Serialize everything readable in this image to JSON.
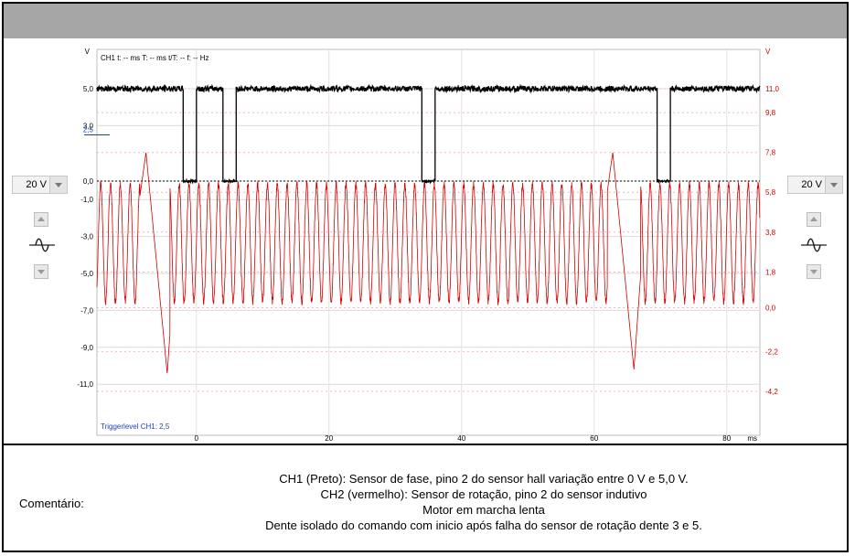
{
  "comment": {
    "label": "Comentário:",
    "lines": [
      "CH1 (Preto): Sensor de fase, pino 2 do sensor hall variação entre 0 V e 5,0 V.",
      "CH2 (vermelho): Sensor de rotação, pino 2 do sensor indutivo",
      "Motor em marcha lenta",
      "Dente isolado do comando com inicio após falha do sensor de rotação dente 3 e 5."
    ]
  },
  "controls": {
    "left_range": "20 V",
    "right_range": "20 V"
  },
  "colors": {
    "ch1": "#000000",
    "ch2": "#d20000",
    "trigger": "#1f3fbf",
    "header": "#a6a6a6"
  },
  "chart_data": {
    "type": "line",
    "header_text": "CH1 t: -- ms  T: -- ms  t/T: --  f: -- Hz",
    "trigger_label": "Triggerlevel CH1: 2,5",
    "trigger_level": 2.5,
    "trigger_marker_label": "2,5",
    "xlim": [
      -15,
      85
    ],
    "x_unit": "ms",
    "x_ticks": [
      0,
      20,
      40,
      60,
      80
    ],
    "x_tick_labels": [
      "0",
      "20",
      "40",
      "60",
      "80"
    ],
    "left_axis": {
      "unit": "V",
      "ylim": [
        -14,
        8
      ],
      "ticks": [
        5.0,
        3.0,
        0.0,
        -1.0,
        -3.0,
        -5.0,
        -7.0,
        -9.0,
        -11.0
      ],
      "tick_labels": [
        "5,0",
        "3,0",
        "0,0",
        "-1,0",
        "-3,0",
        "-5,0",
        "-7,0",
        "-9,0",
        "-11,0"
      ]
    },
    "right_axis": {
      "unit": "V",
      "ticks": [
        11.0,
        9.8,
        7.8,
        5.8,
        3.8,
        1.8,
        0.0,
        -2.2,
        -4.2
      ],
      "tick_labels": [
        "11,0",
        "9,8",
        "7,8",
        "5,8",
        "3,8",
        "1,8",
        "0,0",
        "-2,2",
        "-4,2"
      ]
    },
    "series": [
      {
        "name": "CH1",
        "axis": "left",
        "high": 5.0,
        "low": 0.0,
        "low_intervals": [
          [
            -2.0,
            0.0
          ],
          [
            4.0,
            6.0
          ],
          [
            34.0,
            36.0
          ],
          [
            69.5,
            71.5
          ]
        ]
      },
      {
        "name": "CH2",
        "axis": "right",
        "period_ms": 1.48,
        "amplitude_peak": 6.2,
        "amplitude_trough": 0.3,
        "gap_regions": [
          [
            -8.5,
            -4.0
          ],
          [
            62.0,
            67.0
          ]
        ],
        "gap_spikes": [
          {
            "x": -7.6,
            "peak": 7.8,
            "trough": -3.3
          },
          {
            "x": 62.8,
            "peak": 7.8,
            "trough": -3.1
          }
        ]
      }
    ],
    "grid": true
  }
}
